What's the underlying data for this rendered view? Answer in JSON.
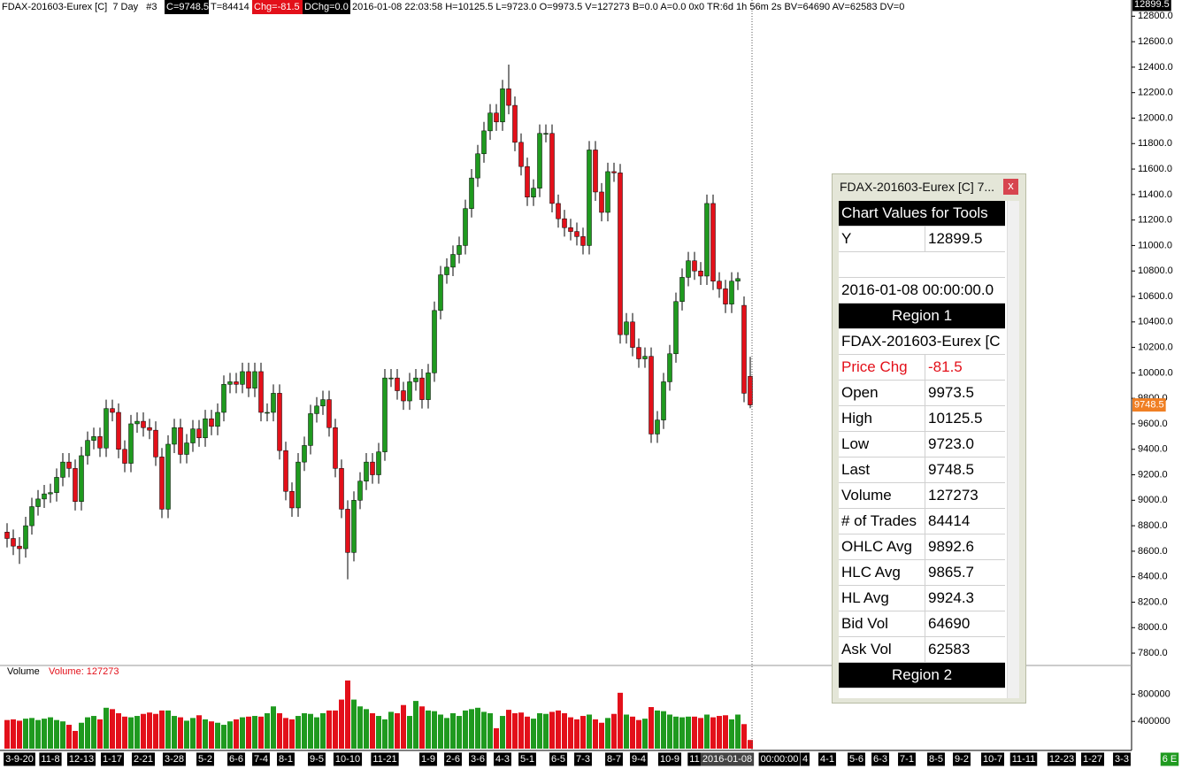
{
  "header": [
    "FDAX-201603-Eurex [C]  7 Day   #3",
    "C=9748.5",
    "T=84414",
    "Chg=-81.5",
    "DChg=0.0",
    "2016-01-08 22:03:58 H=10125.5 L=9723.0 O=9973.5 V=127273 B=0.0 A=0.0 0x0 TR:6d 1h 56m 2s BV=64690 AV=62583 DV=0"
  ],
  "chart_data": {
    "type": "candlestick",
    "up_color": "#1f9a1f",
    "down_color": "#e3101a",
    "categories": [
      null,
      null,
      "3-9-20",
      null,
      null,
      null,
      null,
      "11-8",
      null,
      null,
      null,
      null,
      "12-13",
      null,
      null,
      null,
      null,
      "1-17",
      null,
      null,
      null,
      null,
      "2-21",
      null,
      null,
      null,
      null,
      "3-28",
      null,
      null,
      null,
      null,
      "5-2",
      null,
      null,
      null,
      null,
      "6-6",
      null,
      null,
      null,
      "7-4",
      null,
      null,
      null,
      "8-1",
      null,
      null,
      null,
      null,
      "9-5",
      null,
      null,
      null,
      null,
      "10-10",
      null,
      null,
      null,
      null,
      null,
      "11-21",
      null,
      null,
      null,
      null,
      null,
      null,
      "1-9",
      null,
      null,
      null,
      "2-6",
      null,
      null,
      null,
      "3-6",
      null,
      null,
      null,
      "4-3",
      null,
      null,
      null,
      "5-1",
      null,
      null,
      null,
      null,
      "6-5",
      null,
      null,
      null,
      "7-3",
      null,
      null,
      null,
      null,
      "8-7",
      null,
      null,
      null,
      "9-4",
      null,
      null,
      null,
      null,
      "10-9",
      null,
      null,
      null,
      "11",
      null,
      null,
      null,
      null,
      null,
      null,
      null,
      null,
      null
    ],
    "open": [
      8750,
      8700,
      8640,
      8620,
      8800,
      8950,
      9010,
      9050,
      9060,
      9180,
      9300,
      9250,
      8990,
      9350,
      9470,
      9500,
      9410,
      9720,
      9690,
      9400,
      9290,
      9600,
      9620,
      9570,
      9550,
      9340,
      8930,
      9440,
      9570,
      9360,
      9450,
      9560,
      9490,
      9640,
      9580,
      9690,
      9910,
      9930,
      9910,
      10010,
      9880,
      10010,
      9690,
      9690,
      9840,
      9390,
      9070,
      8940,
      9300,
      9430,
      9680,
      9740,
      9790,
      9570,
      9250,
      8930,
      8590,
      9000,
      9150,
      9300,
      9200,
      9380,
      9960,
      9960,
      9860,
      9780,
      9930,
      9960,
      9790,
      10000,
      10490,
      10770,
      10830,
      10930,
      11000,
      11290,
      11530,
      11720,
      11900,
      12040,
      11970,
      12230,
      12100,
      11810,
      11620,
      11380,
      11450,
      11880,
      11880,
      11330,
      11210,
      11140,
      11110,
      11070,
      11000,
      11750,
      11420,
      11260,
      11580,
      11570,
      10300,
      10400,
      10200,
      10110,
      10130,
      9520,
      9630,
      9930,
      10150,
      10560,
      10750,
      10880,
      10800,
      10760,
      11330,
      10720,
      10660,
      10540,
      10720,
      10530,
      9973.5
    ],
    "high": [
      8820,
      8770,
      8710,
      8870,
      9020,
      9080,
      9120,
      9130,
      9250,
      9370,
      9370,
      9320,
      9420,
      9540,
      9570,
      9570,
      9790,
      9790,
      9760,
      9470,
      9670,
      9690,
      9690,
      9640,
      9620,
      9410,
      9510,
      9640,
      9640,
      9520,
      9630,
      9630,
      9710,
      9710,
      9760,
      9980,
      10000,
      10000,
      10080,
      10080,
      10080,
      10080,
      9760,
      9910,
      9910,
      9460,
      9140,
      9370,
      9500,
      9750,
      9810,
      9860,
      9860,
      9640,
      9320,
      9000,
      9070,
      9220,
      9370,
      9370,
      9450,
      10030,
      10030,
      10030,
      9930,
      10000,
      10030,
      10030,
      10070,
      10560,
      10840,
      10900,
      11000,
      11070,
      11360,
      11600,
      11790,
      11970,
      12110,
      12110,
      12300,
      12420,
      12170,
      11880,
      11690,
      11520,
      11950,
      11950,
      11950,
      11400,
      11280,
      11210,
      11180,
      11140,
      11820,
      11820,
      11490,
      11650,
      11650,
      11640,
      10470,
      10470,
      10270,
      10200,
      10200,
      9700,
      10000,
      10220,
      10630,
      10820,
      10950,
      10950,
      10870,
      11400,
      11400,
      10790,
      10730,
      10790,
      10790,
      10600,
      10125.5
    ],
    "low": [
      8630,
      8570,
      8500,
      8550,
      8730,
      8880,
      8940,
      8980,
      8990,
      9110,
      9180,
      8920,
      8920,
      9280,
      9400,
      9340,
      9340,
      9620,
      9330,
      9220,
      9220,
      9530,
      9500,
      9480,
      9270,
      8860,
      8860,
      9370,
      9290,
      9290,
      9380,
      9420,
      9420,
      9510,
      9510,
      9620,
      9840,
      9840,
      9840,
      9810,
      9810,
      9620,
      9620,
      9620,
      9320,
      9000,
      8870,
      8870,
      9230,
      9360,
      9610,
      9670,
      9500,
      9180,
      8860,
      8380,
      8520,
      8930,
      9080,
      9130,
      9130,
      9310,
      9890,
      9790,
      9710,
      9710,
      9860,
      9720,
      9720,
      9930,
      10420,
      10700,
      10760,
      10860,
      10930,
      11220,
      11460,
      11650,
      11830,
      11900,
      11900,
      12030,
      11740,
      11550,
      11310,
      11310,
      11380,
      11810,
      11260,
      11140,
      11070,
      11040,
      11000,
      10930,
      10930,
      11350,
      11190,
      11190,
      11500,
      10230,
      10230,
      10130,
      10040,
      10040,
      9450,
      9450,
      9560,
      9860,
      10080,
      10490,
      10680,
      10730,
      10690,
      10690,
      10650,
      10590,
      10470,
      10470,
      10650,
      9770,
      9723
    ],
    "close": [
      8700,
      8640,
      8620,
      8800,
      8950,
      9010,
      9050,
      9060,
      9180,
      9300,
      9250,
      8990,
      9350,
      9470,
      9500,
      9410,
      9720,
      9690,
      9400,
      9290,
      9600,
      9620,
      9570,
      9550,
      9340,
      8930,
      9440,
      9570,
      9360,
      9450,
      9560,
      9490,
      9640,
      9580,
      9690,
      9910,
      9930,
      9910,
      10010,
      9880,
      10010,
      9690,
      9690,
      9840,
      9390,
      9070,
      8940,
      9300,
      9430,
      9680,
      9740,
      9790,
      9570,
      9250,
      8930,
      8590,
      9000,
      9150,
      9300,
      9200,
      9380,
      9960,
      9960,
      9860,
      9780,
      9930,
      9960,
      9790,
      10000,
      10490,
      10770,
      10830,
      10930,
      11000,
      11290,
      11530,
      11720,
      11900,
      12040,
      11970,
      12230,
      12100,
      11810,
      11620,
      11380,
      11450,
      11880,
      11880,
      11330,
      11210,
      11140,
      11110,
      11070,
      11000,
      11750,
      11420,
      11260,
      11580,
      11570,
      10300,
      10400,
      10200,
      10110,
      10130,
      9520,
      9630,
      9930,
      10150,
      10560,
      10750,
      10880,
      10800,
      10760,
      11330,
      10720,
      10660,
      10540,
      10720,
      10740,
      9840,
      9748.5
    ],
    "volume": [
      420000,
      430000,
      410000,
      440000,
      450000,
      420000,
      440000,
      460000,
      420000,
      400000,
      350000,
      260000,
      380000,
      460000,
      480000,
      430000,
      600000,
      580000,
      520000,
      470000,
      460000,
      480000,
      510000,
      530000,
      510000,
      560000,
      560000,
      480000,
      460000,
      410000,
      450000,
      490000,
      430000,
      400000,
      380000,
      350000,
      400000,
      430000,
      460000,
      470000,
      480000,
      470000,
      520000,
      620000,
      520000,
      450000,
      430000,
      480000,
      520000,
      510000,
      460000,
      520000,
      560000,
      560000,
      720000,
      1000000,
      720000,
      620000,
      580000,
      520000,
      480000,
      430000,
      540000,
      520000,
      640000,
      480000,
      700000,
      620000,
      560000,
      550000,
      500000,
      450000,
      520000,
      480000,
      560000,
      580000,
      600000,
      540000,
      520000,
      300000,
      480000,
      570000,
      520000,
      530000,
      470000,
      440000,
      520000,
      510000,
      540000,
      560000,
      520000,
      460000,
      430000,
      480000,
      500000,
      430000,
      380000,
      450000,
      510000,
      820000,
      500000,
      470000,
      420000,
      440000,
      610000,
      560000,
      550000,
      500000,
      470000,
      460000,
      470000,
      470000,
      450000,
      500000,
      460000,
      480000,
      490000,
      430000,
      500000,
      360000,
      127273
    ],
    "ylim": [
      7717,
      12899.5
    ],
    "yticks": [
      {
        "value": 12800,
        "label": "12800.0"
      },
      {
        "value": 12600,
        "label": "12600.0"
      },
      {
        "value": 12400,
        "label": "12400.0"
      },
      {
        "value": 12200,
        "label": "12200.0"
      },
      {
        "value": 12000,
        "label": "12000.0"
      },
      {
        "value": 11800,
        "label": "11800.0"
      },
      {
        "value": 11600,
        "label": "11600.0"
      },
      {
        "value": 11400,
        "label": "11400.0"
      },
      {
        "value": 11200,
        "label": "11200.0"
      },
      {
        "value": 11000,
        "label": "11000.0"
      },
      {
        "value": 10800,
        "label": "10800.0"
      },
      {
        "value": 10600,
        "label": "10600.0"
      },
      {
        "value": 10400,
        "label": "10400.0"
      },
      {
        "value": 10200,
        "label": "10200.0"
      },
      {
        "value": 10000,
        "label": "10000.0"
      },
      {
        "value": 9800,
        "label": "9800.0"
      },
      {
        "value": 9600,
        "label": "9600.0"
      },
      {
        "value": 9400,
        "label": "9400.0"
      },
      {
        "value": 9200,
        "label": "9200.0"
      },
      {
        "value": 9000,
        "label": "9000.0"
      },
      {
        "value": 8800,
        "label": "8800.0"
      },
      {
        "value": 8600,
        "label": "8600.0"
      },
      {
        "value": 8400,
        "label": "8400.0"
      },
      {
        "value": 8200,
        "label": "8200.0"
      },
      {
        "value": 8000,
        "label": "8000.0"
      },
      {
        "value": 7800,
        "label": "7800.0"
      }
    ],
    "volume_ylim": [
      0,
      1000000
    ],
    "volume_yticks": [
      800000,
      400000
    ],
    "volume_title": "Volume",
    "volume_label": "Volume: 127273",
    "cursor_price": 12899.5,
    "last_price": 9748.5,
    "cursor_date": "2016-01-08",
    "cursor_time": "00:00:00",
    "future_categories": [
      "4",
      "4-1",
      "5-6",
      "6-3",
      "7-1",
      "8-5",
      "9-2",
      "10-7",
      "11-11",
      "12-23",
      "1-27",
      "3-3"
    ],
    "corner_label": "6 E"
  },
  "tool_window": {
    "title": "FDAX-201603-Eurex [C]  7...",
    "close": "x",
    "heading": "Chart Values for Tools",
    "y_label": "Y",
    "y_value": "12899.5",
    "datetime": "2016-01-08  00:00:00.0",
    "region1": "Region 1",
    "symbol": "FDAX-201603-Eurex [C",
    "rows": [
      [
        "Price Chg",
        "-81.5"
      ],
      [
        "Open",
        "9973.5"
      ],
      [
        "High",
        "10125.5"
      ],
      [
        "Low",
        "9723.0"
      ],
      [
        "Last",
        "9748.5"
      ],
      [
        "Volume",
        "127273"
      ],
      [
        "# of Trades",
        "84414"
      ],
      [
        "OHLC Avg",
        "9892.6"
      ],
      [
        "HLC Avg",
        "9865.7"
      ],
      [
        "HL Avg",
        "9924.3"
      ],
      [
        "Bid Vol",
        "64690"
      ],
      [
        "Ask Vol",
        "62583"
      ]
    ],
    "region2": "Region 2"
  }
}
